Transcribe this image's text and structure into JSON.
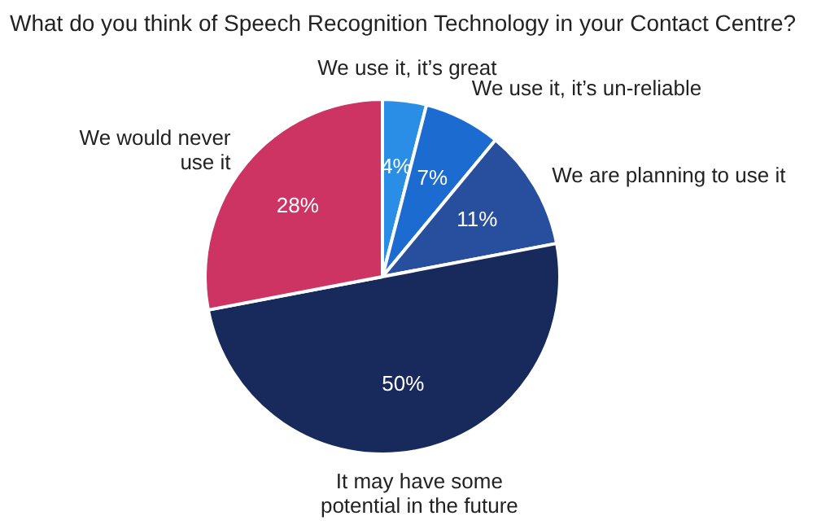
{
  "chart_data": {
    "type": "pie",
    "title": "What do you think of Speech Recognition Technology in your Contact Centre?",
    "categories": [
      "We use it, it’s great",
      "We use it, it’s un-reliable",
      "We are planning to use it",
      "It may have some potential in the future",
      "We would never use it"
    ],
    "values": [
      4,
      7,
      11,
      50,
      28
    ],
    "value_labels": [
      "4%",
      "7%",
      "11%",
      "50%",
      "28%"
    ],
    "colors": [
      "#2a8de6",
      "#1b6bd0",
      "#284f9e",
      "#172a5b",
      "#cd3464"
    ],
    "legend": false
  }
}
